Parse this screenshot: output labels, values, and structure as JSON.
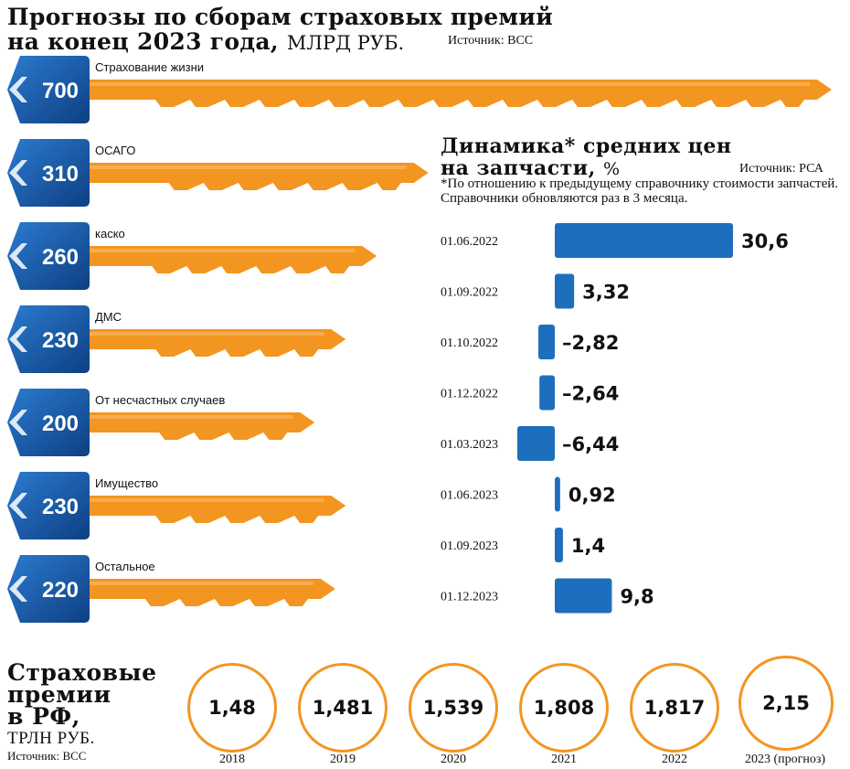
{
  "header": {
    "title_line1": "Прогнозы по сборам страховых премий",
    "title_line2": "на конец 2023 года,",
    "unit": "МЛРД РУБ.",
    "source": "Источник: ВСС"
  },
  "keys": [
    {
      "label": "Страхование жизни",
      "value": 700
    },
    {
      "label": "ОСАГО",
      "value": 310
    },
    {
      "label": "каско",
      "value": 260
    },
    {
      "label": "ДМС",
      "value": 230
    },
    {
      "label": "От несчастных случаев",
      "value": 200
    },
    {
      "label": "Имущество",
      "value": 230
    },
    {
      "label": "Остальное",
      "value": 220
    }
  ],
  "parts": {
    "title_line1": "Динамика* средних цен",
    "title_line2": "на запчасти,",
    "unit": "%",
    "source": "Источник: РСА",
    "note": "*По отношению к предыдущему справочнику стоимости запчастей. Справочники обновляются раз в 3 месяца."
  },
  "bottom": {
    "title_line1": "Страховые",
    "title_line2": "премии",
    "title_line3": "в РФ,",
    "unit": "ТРЛН РУБ.",
    "source": "Источник: ВСС",
    "items": [
      {
        "value": "1,48",
        "year": "2018"
      },
      {
        "value": "1,481",
        "year": "2019"
      },
      {
        "value": "1,539",
        "year": "2020"
      },
      {
        "value": "1,808",
        "year": "2021"
      },
      {
        "value": "1,817",
        "year": "2022"
      },
      {
        "value": "2,15",
        "year": "2023 (прогноз)"
      }
    ]
  },
  "colors": {
    "blue": "#1a62b4",
    "blue_dark": "#0e3f82",
    "orange": "#f39521",
    "orange_light": "#f7ad4d",
    "bar": "#1d6fbd",
    "text": "#111111"
  },
  "chart_data": [
    {
      "type": "bar",
      "title": "Прогнозы по сборам страховых премий на конец 2023 года, МЛРД РУБ.",
      "categories": [
        "Страхование жизни",
        "ОСАГО",
        "каско",
        "ДМС",
        "От несчастных случаев",
        "Имущество",
        "Остальное"
      ],
      "values": [
        700,
        310,
        260,
        230,
        200,
        230,
        220
      ],
      "orientation": "horizontal",
      "xlabel": "",
      "ylabel": "млрд руб."
    },
    {
      "type": "bar",
      "title": "Динамика* средних цен на запчасти, %",
      "categories": [
        "01.06.2022",
        "01.09.2022",
        "01.10.2022",
        "01.12.2022",
        "01.03.2023",
        "01.06.2023",
        "01.09.2023",
        "01.12.2023"
      ],
      "values": [
        30.6,
        3.32,
        -2.82,
        -2.64,
        -6.44,
        0.92,
        1.4,
        9.8
      ],
      "labels": [
        "30,6",
        "3,32",
        "–2,82",
        "–2,64",
        "–6,44",
        "0,92",
        "1,4",
        "9,8"
      ],
      "orientation": "horizontal",
      "xlabel": "",
      "ylabel": "%"
    }
  ]
}
